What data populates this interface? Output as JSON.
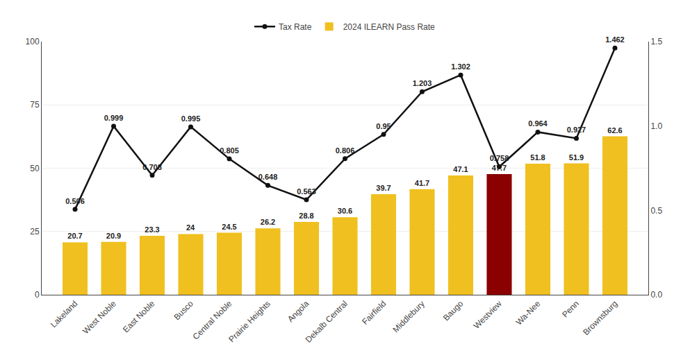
{
  "chart_data": {
    "type": "bar",
    "categories": [
      "Lakeland",
      "West Noble",
      "East Noble",
      "Busco",
      "Central Noble",
      "Prairie Heights",
      "Angola",
      "Dekalb Central",
      "Fairfield",
      "Middlebury",
      "Baugo",
      "Westview",
      "Wa-Nee",
      "Penn",
      "Brownsburg"
    ],
    "series": [
      {
        "name": "2024 ILEARN Pass Rate",
        "type": "bar",
        "colors": [
          "#F0C020",
          "#F0C020",
          "#F0C020",
          "#F0C020",
          "#F0C020",
          "#F0C020",
          "#F0C020",
          "#F0C020",
          "#F0C020",
          "#F0C020",
          "#F0C020",
          "#8B0000",
          "#F0C020",
          "#F0C020",
          "#F0C020"
        ],
        "values": [
          20.7,
          20.9,
          23.3,
          24,
          24.5,
          26.2,
          28.8,
          30.6,
          39.7,
          41.7,
          47.1,
          47.7,
          51.8,
          51.9,
          62.6
        ]
      },
      {
        "name": "Tax Rate",
        "type": "line",
        "axis": "y2",
        "color": "#111111",
        "marker": "circle",
        "values": [
          0.506,
          0.999,
          0.708,
          0.995,
          0.805,
          0.648,
          0.563,
          0.806,
          0.95,
          1.203,
          1.302,
          0.758,
          0.964,
          0.927,
          1.462
        ]
      }
    ],
    "ylim": [
      0,
      100
    ],
    "yticks": [
      0,
      25,
      50,
      75,
      100
    ],
    "y2lim": [
      0,
      1.5
    ],
    "y2ticks": [
      {
        "value": 0,
        "label": "0.0"
      },
      0.5,
      {
        "value": 1,
        "label": "1.0"
      },
      1.5
    ],
    "grid": true,
    "data_labels": true,
    "legend": "top"
  }
}
